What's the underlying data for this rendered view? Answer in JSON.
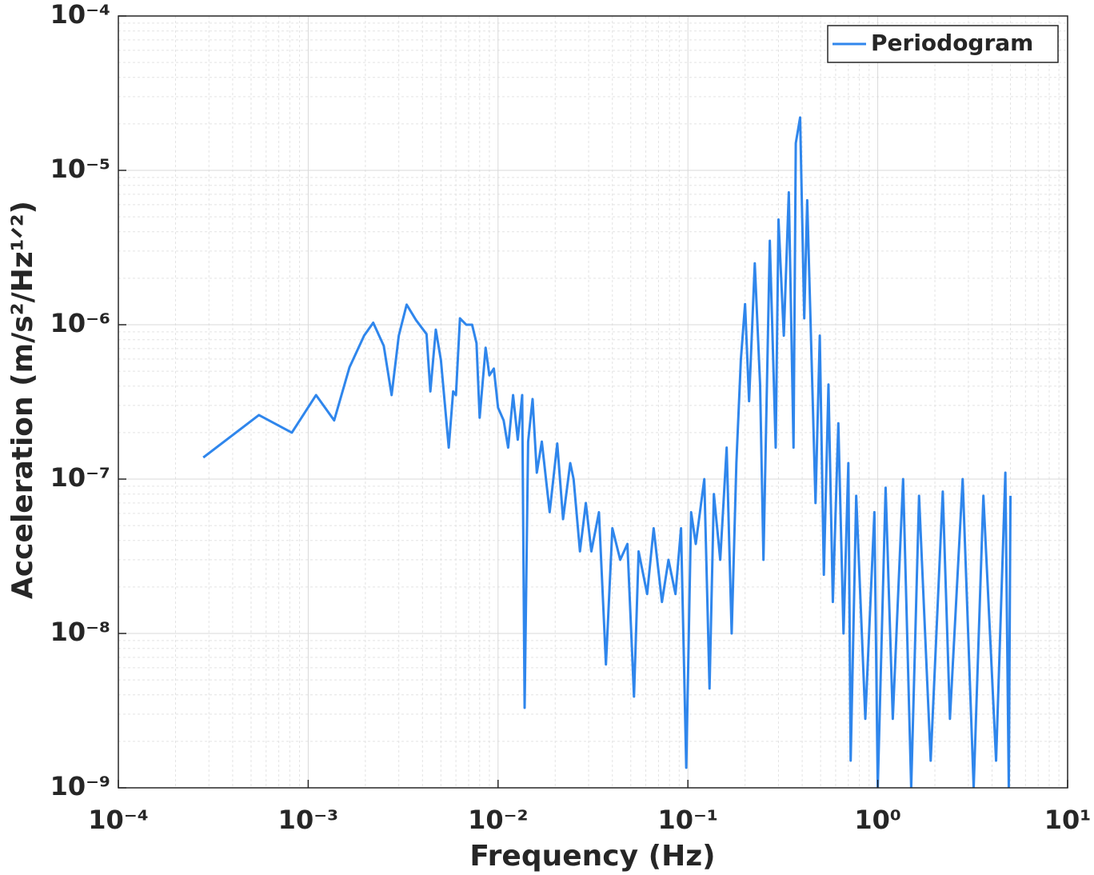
{
  "chart_data": {
    "type": "line",
    "xlabel": "Frequency (Hz)",
    "ylabel": "Acceleration (m/s²/Hz¹ᐟ²)",
    "log_x": true,
    "log_y": true,
    "grid": true,
    "minor_grid": true,
    "legend": "upper right",
    "xlim": [
      0.0001,
      10
    ],
    "ylim": [
      1e-09,
      0.0001
    ],
    "xticks": [
      {
        "value": 0.0001,
        "label": "10⁻⁴"
      },
      {
        "value": 0.001,
        "label": "10⁻³"
      },
      {
        "value": 0.01,
        "label": "10⁻²"
      },
      {
        "value": 0.1,
        "label": "10⁻¹"
      },
      {
        "value": 1,
        "label": "10⁰"
      },
      {
        "value": 10,
        "label": "10¹"
      }
    ],
    "yticks": [
      {
        "value": 1e-09,
        "label": "10⁻⁹"
      },
      {
        "value": 1e-08,
        "label": "10⁻⁸"
      },
      {
        "value": 1e-07,
        "label": "10⁻⁷"
      },
      {
        "value": 1e-06,
        "label": "10⁻⁶"
      },
      {
        "value": 1e-05,
        "label": "10⁻⁵"
      },
      {
        "value": 0.0001,
        "label": "10⁻⁴"
      }
    ],
    "x": [
      0.00028,
      0.00055,
      0.00082,
      0.0011,
      0.00137,
      0.00165,
      0.00197,
      0.0022,
      0.0025,
      0.00275,
      0.003,
      0.0033,
      0.0037,
      0.0042,
      0.0044,
      0.0047,
      0.005,
      0.0055,
      0.0058,
      0.006,
      0.0063,
      0.0068,
      0.0073,
      0.0077,
      0.008,
      0.0086,
      0.009,
      0.0095,
      0.01,
      0.0107,
      0.0113,
      0.012,
      0.0127,
      0.0134,
      0.0138,
      0.0144,
      0.0152,
      0.016,
      0.017,
      0.0187,
      0.0205,
      0.022,
      0.024,
      0.025,
      0.027,
      0.029,
      0.031,
      0.034,
      0.037,
      0.04,
      0.044,
      0.048,
      0.052,
      0.055,
      0.061,
      0.066,
      0.073,
      0.079,
      0.086,
      0.092,
      0.098,
      0.104,
      0.11,
      0.122,
      0.13,
      0.137,
      0.148,
      0.16,
      0.17,
      0.18,
      0.19,
      0.2,
      0.21,
      0.225,
      0.24,
      0.25,
      0.27,
      0.29,
      0.3,
      0.32,
      0.34,
      0.36,
      0.37,
      0.39,
      0.41,
      0.425,
      0.44,
      0.47,
      0.495,
      0.52,
      0.55,
      0.58,
      0.62,
      0.66,
      0.7,
      0.72,
      0.77,
      0.86,
      0.96,
      1.0,
      1.1,
      1.2,
      1.36,
      1.5,
      1.65,
      1.9,
      2.2,
      2.4,
      2.8,
      3.2,
      3.6,
      4.2,
      4.7,
      4.9,
      5.0
    ],
    "series": [
      {
        "name": "Periodogram",
        "color": "#2f86ec",
        "values": [
          1.38e-07,
          2.6e-07,
          2e-07,
          3.5e-07,
          2.4e-07,
          5.3e-07,
          8.5e-07,
          1.03e-06,
          7.3e-07,
          3.5e-07,
          8.5e-07,
          1.35e-06,
          1.07e-06,
          8.7e-07,
          3.7e-07,
          9.3e-07,
          5.9e-07,
          1.6e-07,
          3.7e-07,
          3.5e-07,
          1.1e-06,
          1e-06,
          1e-06,
          7.6e-07,
          2.5e-07,
          7.1e-07,
          4.7e-07,
          5.2e-07,
          2.9e-07,
          2.4e-07,
          1.6e-07,
          3.5e-07,
          1.8e-07,
          3.5e-07,
          3.3e-09,
          1.75e-07,
          3.3e-07,
          1.1e-07,
          1.75e-07,
          6.1e-08,
          1.7e-07,
          5.5e-08,
          1.27e-07,
          1e-07,
          3.4e-08,
          7e-08,
          3.4e-08,
          6.1e-08,
          6.3e-09,
          4.8e-08,
          3e-08,
          3.8e-08,
          3.9e-09,
          3.4e-08,
          1.8e-08,
          4.8e-08,
          1.6e-08,
          3e-08,
          1.8e-08,
          4.8e-08,
          1.35e-09,
          6.1e-08,
          3.8e-08,
          1e-07,
          4.4e-09,
          8e-08,
          3e-08,
          1.6e-07,
          1e-08,
          1.27e-07,
          5.9e-07,
          1.36e-06,
          3.2e-07,
          2.5e-06,
          4.1e-07,
          3e-08,
          3.5e-06,
          1.6e-07,
          4.8e-06,
          8.5e-07,
          7.2e-06,
          1.6e-07,
          1.5e-05,
          2.2e-05,
          1.1e-06,
          6.4e-06,
          1.36e-06,
          7e-08,
          8.5e-07,
          2.4e-08,
          4.1e-07,
          1.6e-08,
          2.3e-07,
          1e-08,
          1.27e-07,
          1.5e-09,
          7.8e-08,
          2.8e-09,
          6.1e-08,
          1e-09,
          8.8e-08,
          2.8e-09,
          1e-07,
          1e-09,
          7.8e-08,
          1.5e-09,
          8.3e-08,
          2.8e-09,
          1e-07,
          1e-09,
          7.8e-08,
          1.5e-09,
          1.1e-07,
          1e-09,
          7.8e-08
        ]
      }
    ]
  }
}
